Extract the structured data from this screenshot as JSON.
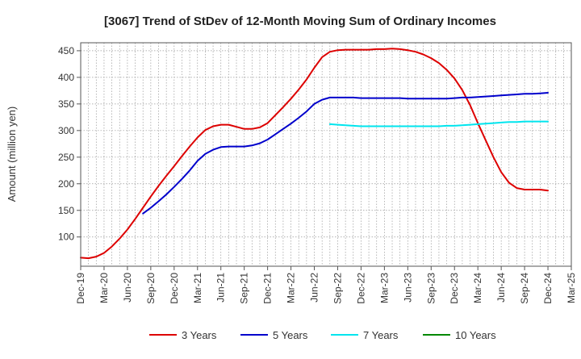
{
  "chart_data": {
    "type": "line",
    "title": "[3067]  Trend of StDev of 12-Month Moving Sum of Ordinary Incomes",
    "xlabel": "",
    "ylabel": "Amount (million yen)",
    "ylim": [
      45,
      465
    ],
    "yticks": [
      100,
      150,
      200,
      250,
      300,
      350,
      400,
      450
    ],
    "xlim": [
      "2019-12",
      "2025-03"
    ],
    "x_tick_labels": [
      "Dec-19",
      "Mar-20",
      "Jun-20",
      "Sep-20",
      "Dec-20",
      "Mar-21",
      "Jun-21",
      "Sep-21",
      "Dec-21",
      "Mar-22",
      "Jun-22",
      "Sep-22",
      "Dec-22",
      "Mar-23",
      "Jun-23",
      "Sep-23",
      "Dec-23",
      "Mar-24",
      "Jun-24",
      "Sep-24",
      "Dec-24",
      "Mar-25"
    ],
    "grid": true,
    "legend_position": "bottom",
    "series": [
      {
        "name": "3 Years",
        "color": "#dd0000",
        "x": [
          "2019-12",
          "2020-01",
          "2020-02",
          "2020-03",
          "2020-04",
          "2020-05",
          "2020-06",
          "2020-07",
          "2020-08",
          "2020-09",
          "2020-10",
          "2020-11",
          "2020-12",
          "2021-01",
          "2021-02",
          "2021-03",
          "2021-04",
          "2021-05",
          "2021-06",
          "2021-07",
          "2021-08",
          "2021-09",
          "2021-10",
          "2021-11",
          "2021-12",
          "2022-01",
          "2022-02",
          "2022-03",
          "2022-04",
          "2022-05",
          "2022-06",
          "2022-07",
          "2022-08",
          "2022-09",
          "2022-10",
          "2022-11",
          "2022-12",
          "2023-01",
          "2023-02",
          "2023-03",
          "2023-04",
          "2023-05",
          "2023-06",
          "2023-07",
          "2023-08",
          "2023-09",
          "2023-10",
          "2023-11",
          "2023-12",
          "2024-01",
          "2024-02",
          "2024-03",
          "2024-04",
          "2024-05",
          "2024-06",
          "2024-07",
          "2024-08",
          "2024-09",
          "2024-10",
          "2024-11",
          "2024-12"
        ],
        "values": [
          61,
          60,
          63,
          70,
          82,
          97,
          114,
          134,
          155,
          176,
          196,
          215,
          233,
          252,
          270,
          287,
          301,
          308,
          311,
          311,
          307,
          303,
          303,
          306,
          314,
          329,
          344,
          360,
          377,
          396,
          418,
          438,
          448,
          451,
          452,
          452,
          452,
          452,
          453,
          453,
          454,
          453,
          451,
          448,
          443,
          436,
          427,
          414,
          398,
          376,
          348,
          314,
          282,
          250,
          222,
          202,
          192,
          189,
          189,
          189,
          187
        ]
      },
      {
        "name": "5 Years",
        "color": "#0000cc",
        "x": [
          "2020-08",
          "2020-09",
          "2020-10",
          "2020-11",
          "2020-12",
          "2021-01",
          "2021-02",
          "2021-03",
          "2021-04",
          "2021-05",
          "2021-06",
          "2021-07",
          "2021-08",
          "2021-09",
          "2021-10",
          "2021-11",
          "2021-12",
          "2022-01",
          "2022-02",
          "2022-03",
          "2022-04",
          "2022-05",
          "2022-06",
          "2022-07",
          "2022-08",
          "2022-09",
          "2022-10",
          "2022-11",
          "2022-12",
          "2023-01",
          "2023-02",
          "2023-03",
          "2023-04",
          "2023-05",
          "2023-06",
          "2023-07",
          "2023-08",
          "2023-09",
          "2023-10",
          "2023-11",
          "2023-12",
          "2024-01",
          "2024-02",
          "2024-03",
          "2024-04",
          "2024-05",
          "2024-06",
          "2024-07",
          "2024-08",
          "2024-09",
          "2024-10",
          "2024-11",
          "2024-12"
        ],
        "values": [
          144,
          155,
          167,
          180,
          194,
          209,
          225,
          243,
          256,
          264,
          269,
          270,
          270,
          270,
          272,
          276,
          283,
          293,
          303,
          313,
          324,
          336,
          350,
          358,
          362,
          362,
          362,
          362,
          361,
          361,
          361,
          361,
          361,
          361,
          360,
          360,
          360,
          360,
          360,
          360,
          361,
          362,
          362,
          363,
          364,
          365,
          366,
          367,
          368,
          369,
          369,
          370,
          371
        ]
      },
      {
        "name": "7 Years",
        "color": "#00e5ee",
        "x": [
          "2022-08",
          "2022-09",
          "2022-10",
          "2022-11",
          "2022-12",
          "2023-01",
          "2023-02",
          "2023-03",
          "2023-04",
          "2023-05",
          "2023-06",
          "2023-07",
          "2023-08",
          "2023-09",
          "2023-10",
          "2023-11",
          "2023-12",
          "2024-01",
          "2024-02",
          "2024-03",
          "2024-04",
          "2024-05",
          "2024-06",
          "2024-07",
          "2024-08",
          "2024-09",
          "2024-10",
          "2024-11",
          "2024-12"
        ],
        "values": [
          312,
          311,
          310,
          309,
          308,
          308,
          308,
          308,
          308,
          308,
          308,
          308,
          308,
          308,
          308,
          309,
          309,
          310,
          311,
          312,
          313,
          314,
          315,
          316,
          316,
          317,
          317,
          317,
          317
        ]
      },
      {
        "name": "10 Years",
        "color": "#008800",
        "x": [],
        "values": []
      }
    ]
  }
}
